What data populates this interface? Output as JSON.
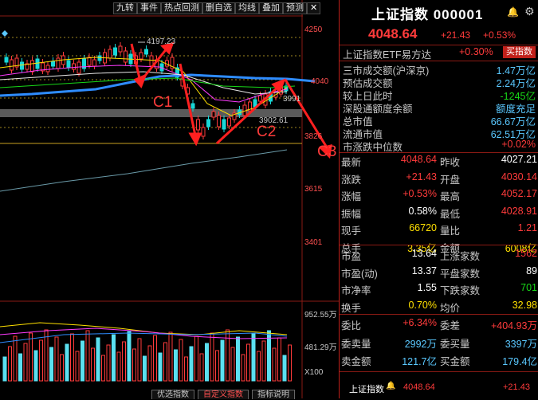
{
  "toolbar": [
    "九转",
    "事件",
    "热点回测",
    "删自选",
    "均线",
    "叠加",
    "预测"
  ],
  "toolbar_close": "✕",
  "chart": {
    "y_labels": {
      "top": "4250",
      "l1": "4040",
      "l2": "3826",
      "l3": "3615",
      "l4": "3401"
    },
    "high_label": "4197.23",
    "low_label": "3902.61",
    "side_price": "3991",
    "annotations": {
      "c1": "C1",
      "c2": "C2",
      "c3": "C3"
    },
    "volume_labels": {
      "top": "952.55万",
      "mid": "481.29万",
      "unit": "X100"
    },
    "bottom_tabs": [
      "优选指数",
      "自定义指数",
      "指标说明"
    ]
  },
  "panel": {
    "title": "上证指数 000001",
    "price": "4048.64",
    "change": "+21.43",
    "change_pct": "+0.53%",
    "etf": {
      "name": "上证指数ETF易方达",
      "pct": "+0.30%",
      "button": "买指数"
    },
    "flows": [
      {
        "k": "三市成交额(沪深京)",
        "v": "1.47万亿",
        "c": "cyan"
      },
      {
        "k": "预估成交额",
        "v": "2.24万亿",
        "c": "cyan"
      },
      {
        "k": "较上日此时",
        "v": "-1245亿",
        "c": "green"
      },
      {
        "k": "深股通额度余额",
        "v": "额度充足",
        "c": "cyan"
      },
      {
        "k": "总市值",
        "v": "66.67万亿",
        "c": "cyan"
      },
      {
        "k": "流通市值",
        "v": "62.51万亿",
        "c": "cyan"
      },
      {
        "k": "市涨跌中位数",
        "v": "+0.02%",
        "c": "red"
      }
    ],
    "grid": [
      {
        "k1": "最新",
        "v1": "4048.64",
        "c1": "red",
        "k2": "昨收",
        "v2": "4027.21",
        "c2": "white"
      },
      {
        "k1": "涨跌",
        "v1": "+21.43",
        "c1": "red",
        "k2": "开盘",
        "v2": "4030.14",
        "c2": "red"
      },
      {
        "k1": "涨幅",
        "v1": "+0.53%",
        "c1": "red",
        "k2": "最高",
        "v2": "4052.17",
        "c2": "red"
      },
      {
        "k1": "振幅",
        "v1": "0.58%",
        "c1": "white",
        "k2": "最低",
        "v2": "4028.91",
        "c2": "red"
      },
      {
        "k1": "现手",
        "v1": "66720",
        "c1": "yellow",
        "k2": "量比",
        "v2": "1.21",
        "c2": "red"
      },
      {
        "k1": "总手",
        "v1": "3.35亿",
        "c1": "yellow",
        "k2": "金额",
        "v2": "6008亿",
        "c2": "yellow"
      }
    ],
    "grid2": [
      {
        "k1": "市盈",
        "v1": "13.64",
        "c1": "white",
        "k2": "上涨家数",
        "v2": "1562",
        "c2": "red"
      },
      {
        "k1": "市盈(动)",
        "v1": "13.37",
        "c1": "white",
        "k2": "平盘家数",
        "v2": "89",
        "c2": "white"
      },
      {
        "k1": "市净率",
        "v1": "1.55",
        "c1": "white",
        "k2": "下跌家数",
        "v2": "701",
        "c2": "green"
      },
      {
        "k1": "换手",
        "v1": "0.70%",
        "c1": "yellow",
        "k2": "均价",
        "v2": "32.98",
        "c2": "yellow"
      }
    ],
    "grid3": [
      {
        "k1": "委比",
        "v1": "+6.34%",
        "c1": "red",
        "k2": "委差",
        "v2": "+404.93万",
        "c2": "red"
      },
      {
        "k1": "委卖量",
        "v1": "2992万",
        "c1": "cyan",
        "k2": "委买量",
        "v2": "3397万",
        "c2": "cyan"
      },
      {
        "k1": "卖金额",
        "v1": "121.7亿",
        "c1": "cyan",
        "k2": "买金额",
        "v2": "179.4亿",
        "c2": "cyan"
      }
    ],
    "footer": {
      "name": "上证指数",
      "price": "4048.64",
      "change": "+21.43"
    }
  }
}
